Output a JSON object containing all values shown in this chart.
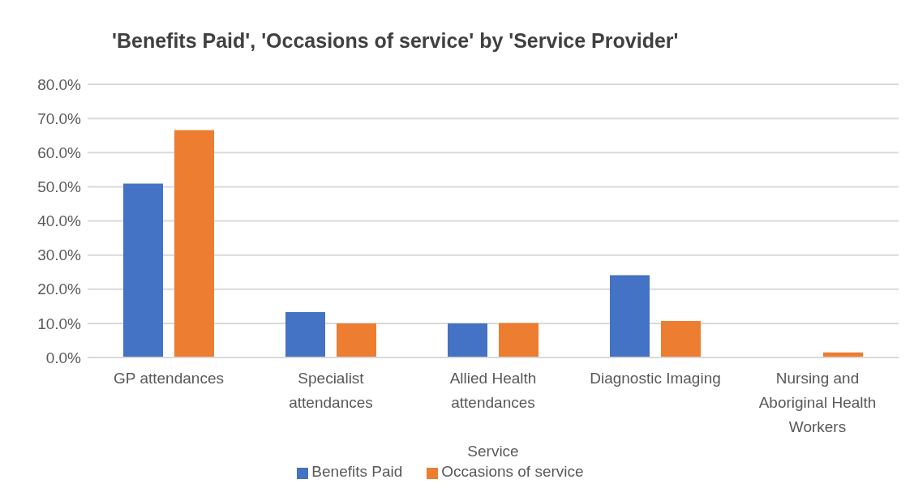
{
  "chart_data": {
    "type": "bar",
    "title": "'Benefits Paid', 'Occasions of service' by 'Service Provider'",
    "xlabel": "Service",
    "categories": [
      "GP attendances",
      "Specialist attendances",
      "Allied Health attendances",
      "Diagnostic Imaging",
      "Nursing and Aboriginal Health Workers"
    ],
    "series": [
      {
        "name": "Benefits Paid",
        "color": "#4472c4",
        "values": [
          50.9,
          13.3,
          10.0,
          24.1,
          0
        ]
      },
      {
        "name": "Occasions of service",
        "color": "#ed7d31",
        "values": [
          66.6,
          10.0,
          10.1,
          10.7,
          1.5
        ]
      }
    ],
    "ylim": [
      0,
      80
    ],
    "yticks": [
      {
        "value": 0,
        "label": "0.0%"
      },
      {
        "value": 10,
        "label": "10.0%"
      },
      {
        "value": 20,
        "label": "20.0%"
      },
      {
        "value": 30,
        "label": "30.0%"
      },
      {
        "value": 40,
        "label": "40.0%"
      },
      {
        "value": 50,
        "label": "50.0%"
      },
      {
        "value": 60,
        "label": "60.0%"
      },
      {
        "value": 70,
        "label": "70.0%"
      },
      {
        "value": 80,
        "label": "80.0%"
      }
    ],
    "grid": "y",
    "legend": "bottom"
  }
}
